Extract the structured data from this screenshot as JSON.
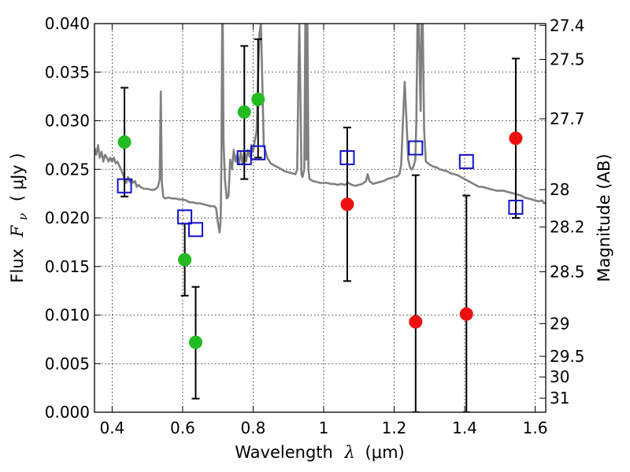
{
  "chart_data": {
    "type": "scatter",
    "xlabel": "Wavelength",
    "xlabel_symbol": "λ",
    "xlabel_unit": "(μm)",
    "ylabel": "Flux",
    "ylabel_symbol": "F",
    "ylabel_subscript": "ν",
    "ylabel_unit": "( μJy )",
    "y2label": "Magnitude (AB)",
    "xlim": [
      0.35,
      1.63
    ],
    "ylim": [
      0.0,
      0.04
    ],
    "grid": true,
    "x_ticks": [
      0.4,
      0.6,
      0.8,
      1.0,
      1.2,
      1.4,
      1.6
    ],
    "x_tick_labels": [
      "0.4",
      "0.6",
      "0.8",
      "1",
      "1.2",
      "1.4",
      "1.6"
    ],
    "y_ticks": [
      0.0,
      0.005,
      0.01,
      0.015,
      0.02,
      0.025,
      0.03,
      0.035,
      0.04
    ],
    "y_tick_labels": [
      "0.000",
      "0.005",
      "0.010",
      "0.015",
      "0.020",
      "0.025",
      "0.030",
      "0.035",
      "0.040"
    ],
    "mag_ticks": [
      27.4,
      27.5,
      27.7,
      28,
      28.2,
      28.5,
      29,
      29.5,
      30,
      31
    ],
    "mag_tick_labels": [
      "27.4",
      "27.5",
      "27.7",
      "28",
      "28.2",
      "28.5",
      "29",
      "29.5",
      "30",
      "31"
    ],
    "series": [
      {
        "marker": "circle",
        "color": "#22bb22",
        "points": [
          {
            "x": 0.435,
            "y": 0.0278,
            "ylo": 0.0222,
            "yhi": 0.0334
          },
          {
            "x": 0.606,
            "y": 0.0157,
            "ylo": 0.012,
            "yhi": 0.0194
          },
          {
            "x": 0.637,
            "y": 0.0072,
            "ylo": 0.0014,
            "yhi": 0.0129
          },
          {
            "x": 0.775,
            "y": 0.0309,
            "ylo": 0.024,
            "yhi": 0.0377
          },
          {
            "x": 0.814,
            "y": 0.0322,
            "ylo": 0.0262,
            "yhi": 0.0384
          }
        ]
      },
      {
        "marker": "circle",
        "color": "#ee1111",
        "points": [
          {
            "x": 1.067,
            "y": 0.0214,
            "ylo": 0.0135,
            "yhi": 0.0293
          },
          {
            "x": 1.261,
            "y": 0.0093,
            "ylo": 0.0,
            "yhi": 0.0244
          },
          {
            "x": 1.405,
            "y": 0.0101,
            "ylo": 0.0,
            "yhi": 0.0223
          },
          {
            "x": 1.545,
            "y": 0.0282,
            "ylo": 0.02,
            "yhi": 0.0364
          }
        ]
      },
      {
        "marker": "square",
        "color": "#1010cc",
        "points": [
          {
            "x": 0.435,
            "y": 0.0233
          },
          {
            "x": 0.606,
            "y": 0.0201
          },
          {
            "x": 0.637,
            "y": 0.0188
          },
          {
            "x": 0.775,
            "y": 0.0262
          },
          {
            "x": 0.814,
            "y": 0.0267
          },
          {
            "x": 1.067,
            "y": 0.0262
          },
          {
            "x": 1.261,
            "y": 0.0272
          },
          {
            "x": 1.405,
            "y": 0.0258
          },
          {
            "x": 1.545,
            "y": 0.0211
          }
        ]
      }
    ],
    "model_spectrum": {
      "color": "#808080",
      "points": [
        [
          0.35,
          0.0272
        ],
        [
          0.355,
          0.0265
        ],
        [
          0.36,
          0.0275
        ],
        [
          0.365,
          0.0262
        ],
        [
          0.37,
          0.0268
        ],
        [
          0.375,
          0.0258
        ],
        [
          0.38,
          0.0265
        ],
        [
          0.385,
          0.0262
        ],
        [
          0.39,
          0.0258
        ],
        [
          0.395,
          0.0262
        ],
        [
          0.4,
          0.0258
        ],
        [
          0.405,
          0.0262
        ],
        [
          0.41,
          0.0256
        ],
        [
          0.415,
          0.0258
        ],
        [
          0.42,
          0.0254
        ],
        [
          0.425,
          0.025
        ],
        [
          0.43,
          0.0246
        ],
        [
          0.435,
          0.024
        ],
        [
          0.44,
          0.0236
        ],
        [
          0.445,
          0.0242
        ],
        [
          0.45,
          0.0237
        ],
        [
          0.455,
          0.024
        ],
        [
          0.46,
          0.0236
        ],
        [
          0.465,
          0.0238
        ],
        [
          0.47,
          0.0232
        ],
        [
          0.475,
          0.0234
        ],
        [
          0.48,
          0.0232
        ],
        [
          0.49,
          0.023
        ],
        [
          0.5,
          0.023
        ],
        [
          0.51,
          0.0229
        ],
        [
          0.52,
          0.0229
        ],
        [
          0.53,
          0.0232
        ],
        [
          0.535,
          0.024
        ],
        [
          0.538,
          0.033
        ],
        [
          0.541,
          0.0236
        ],
        [
          0.545,
          0.0222
        ],
        [
          0.55,
          0.022
        ],
        [
          0.56,
          0.0221
        ],
        [
          0.57,
          0.022
        ],
        [
          0.58,
          0.022
        ],
        [
          0.59,
          0.0219
        ],
        [
          0.6,
          0.0219
        ],
        [
          0.61,
          0.0218
        ],
        [
          0.62,
          0.0216
        ],
        [
          0.63,
          0.0216
        ],
        [
          0.64,
          0.0215
        ],
        [
          0.65,
          0.0215
        ],
        [
          0.66,
          0.0214
        ],
        [
          0.67,
          0.0213
        ],
        [
          0.68,
          0.0212
        ],
        [
          0.69,
          0.0212
        ],
        [
          0.695,
          0.021
        ],
        [
          0.7,
          0.0195
        ],
        [
          0.705,
          0.0185
        ],
        [
          0.708,
          0.02
        ],
        [
          0.71,
          0.026
        ],
        [
          0.712,
          0.04
        ],
        [
          0.714,
          0.04
        ],
        [
          0.716,
          0.028
        ],
        [
          0.72,
          0.024
        ],
        [
          0.725,
          0.022
        ],
        [
          0.73,
          0.0222
        ],
        [
          0.735,
          0.026
        ],
        [
          0.74,
          0.025
        ],
        [
          0.745,
          0.027
        ],
        [
          0.75,
          0.0258
        ],
        [
          0.755,
          0.0265
        ],
        [
          0.76,
          0.0255
        ],
        [
          0.765,
          0.0268
        ],
        [
          0.77,
          0.0255
        ],
        [
          0.775,
          0.0268
        ],
        [
          0.78,
          0.0258
        ],
        [
          0.785,
          0.027
        ],
        [
          0.79,
          0.0263
        ],
        [
          0.795,
          0.0275
        ],
        [
          0.8,
          0.0268
        ],
        [
          0.805,
          0.028
        ],
        [
          0.81,
          0.029
        ],
        [
          0.815,
          0.036
        ],
        [
          0.818,
          0.039
        ],
        [
          0.822,
          0.04
        ],
        [
          0.826,
          0.034
        ],
        [
          0.83,
          0.0275
        ],
        [
          0.84,
          0.0262
        ],
        [
          0.85,
          0.0256
        ],
        [
          0.86,
          0.0254
        ],
        [
          0.87,
          0.0252
        ],
        [
          0.88,
          0.025
        ],
        [
          0.89,
          0.0248
        ],
        [
          0.9,
          0.0247
        ],
        [
          0.91,
          0.0246
        ],
        [
          0.92,
          0.0245
        ],
        [
          0.925,
          0.025
        ],
        [
          0.928,
          0.033
        ],
        [
          0.931,
          0.04
        ],
        [
          0.934,
          0.033
        ],
        [
          0.937,
          0.0245
        ],
        [
          0.94,
          0.0242
        ],
        [
          0.945,
          0.025
        ],
        [
          0.948,
          0.04
        ],
        [
          0.951,
          0.026
        ],
        [
          0.954,
          0.04
        ],
        [
          0.957,
          0.025
        ],
        [
          0.96,
          0.024
        ],
        [
          0.97,
          0.0238
        ],
        [
          0.98,
          0.0237
        ],
        [
          0.99,
          0.0236
        ],
        [
          1.0,
          0.0236
        ],
        [
          1.01,
          0.0236
        ],
        [
          1.02,
          0.0235
        ],
        [
          1.03,
          0.0235
        ],
        [
          1.04,
          0.0234
        ],
        [
          1.05,
          0.0235
        ],
        [
          1.06,
          0.0234
        ],
        [
          1.07,
          0.0236
        ],
        [
          1.08,
          0.0234
        ],
        [
          1.09,
          0.0233
        ],
        [
          1.1,
          0.0234
        ],
        [
          1.11,
          0.0235
        ],
        [
          1.12,
          0.0238
        ],
        [
          1.125,
          0.0245
        ],
        [
          1.13,
          0.0238
        ],
        [
          1.14,
          0.0235
        ],
        [
          1.15,
          0.0236
        ],
        [
          1.16,
          0.0237
        ],
        [
          1.17,
          0.0238
        ],
        [
          1.18,
          0.024
        ],
        [
          1.19,
          0.0241
        ],
        [
          1.2,
          0.0242
        ],
        [
          1.21,
          0.0243
        ],
        [
          1.215,
          0.0245
        ],
        [
          1.22,
          0.0255
        ],
        [
          1.225,
          0.03
        ],
        [
          1.23,
          0.034
        ],
        [
          1.235,
          0.03
        ],
        [
          1.24,
          0.026
        ],
        [
          1.245,
          0.0252
        ],
        [
          1.25,
          0.025
        ],
        [
          1.255,
          0.0253
        ],
        [
          1.26,
          0.026
        ],
        [
          1.263,
          0.03
        ],
        [
          1.266,
          0.04
        ],
        [
          1.27,
          0.04
        ],
        [
          1.275,
          0.031
        ],
        [
          1.278,
          0.04
        ],
        [
          1.281,
          0.04
        ],
        [
          1.285,
          0.029
        ],
        [
          1.29,
          0.0258
        ],
        [
          1.3,
          0.0255
        ],
        [
          1.31,
          0.0253
        ],
        [
          1.32,
          0.0252
        ],
        [
          1.33,
          0.025
        ],
        [
          1.34,
          0.0249
        ],
        [
          1.35,
          0.0248
        ],
        [
          1.36,
          0.0246
        ],
        [
          1.37,
          0.0245
        ],
        [
          1.38,
          0.0244
        ],
        [
          1.39,
          0.0242
        ],
        [
          1.4,
          0.024
        ],
        [
          1.41,
          0.0238
        ],
        [
          1.42,
          0.0236
        ],
        [
          1.43,
          0.0234
        ],
        [
          1.44,
          0.0232
        ],
        [
          1.45,
          0.0232
        ],
        [
          1.46,
          0.0231
        ],
        [
          1.47,
          0.023
        ],
        [
          1.48,
          0.0229
        ],
        [
          1.49,
          0.0228
        ],
        [
          1.5,
          0.0228
        ],
        [
          1.51,
          0.0228
        ],
        [
          1.52,
          0.0227
        ],
        [
          1.53,
          0.0226
        ],
        [
          1.54,
          0.0225
        ],
        [
          1.55,
          0.0224
        ],
        [
          1.56,
          0.0223
        ],
        [
          1.57,
          0.0221
        ],
        [
          1.58,
          0.022
        ],
        [
          1.59,
          0.0219
        ],
        [
          1.6,
          0.0218
        ],
        [
          1.61,
          0.0217
        ],
        [
          1.62,
          0.0218
        ],
        [
          1.625,
          0.0215
        ],
        [
          1.63,
          0.0216
        ]
      ]
    }
  }
}
